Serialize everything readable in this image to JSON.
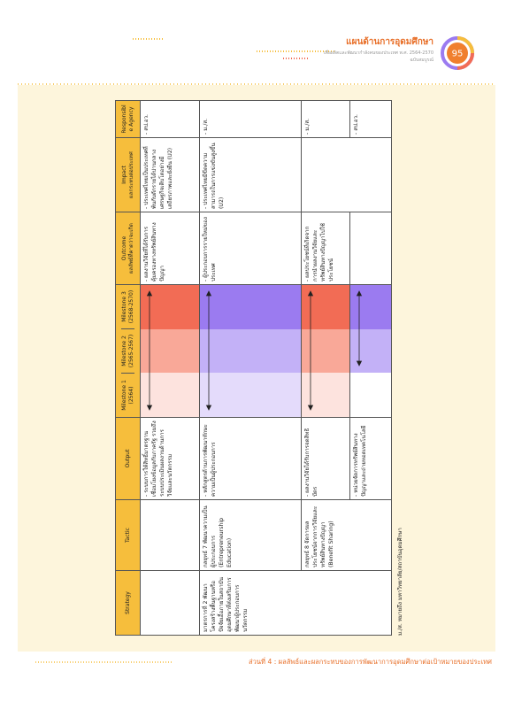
{
  "header": {
    "title": "แผนด้านการอุดมศึกษา",
    "subtitle": "เพื่อผลิตและพัฒนากำลังคนของประเทศ พ.ศ. 2564-2570",
    "edition": "ฉบับสมบูรณ์",
    "page_number": "95"
  },
  "table": {
    "headers": {
      "strategy": "Strategy",
      "tactic": "Tactic",
      "output": "Output",
      "milestone_1": {
        "title": "Milestone 1",
        "years": "(2564)"
      },
      "milestone_2": {
        "title": "Milestone 2",
        "years": "(2565-2567)"
      },
      "milestone_3": {
        "title": "Milestone 3",
        "years": "(2568-2570)"
      },
      "outcome": {
        "title": "Outcome",
        "subtitle": "ผลลัพธ์ที่คาดว่าจะเกิด"
      },
      "impact": {
        "title": "Impact",
        "subtitle": "ผลกระทบต่อประเทศ"
      },
      "agency": "Responsible Agency"
    },
    "rows": [
      {
        "output": "- ระบบการให้สิทธิ์มาตรฐานเชื่อมโยงข้อมูลกับภาครัฐ รวมถึงระบบประเมินผลงานด้านการวิจัยและนวัตกรรม",
        "outcome": "- ผลงานวิจัยที่ได้รับการคุ้มครองทางทรัพย์สินทางปัญญา",
        "impact": "- ประเทศไทยเป็นประเทศที่พ้นกับดักรายได้ปานกลาง เศรษฐกิจเติบโตอย่างมีเสถียรภาพและยั่งยืน (U2)",
        "agency": "- สป.อว."
      },
      {
        "strategy": "มาตรการที่ 2 พัฒนาโครงสร้างพื้นฐานหรือปัจจัยเอื้อภายในสถาบันอุดมศึกษาที่ส่งเสริมการพัฒนาผู้ประกอบการนวัตกรรม",
        "tactic": "กลยุทธ์ 7 พัฒนาความเป็นผู้ประกอบการ (Entrepreneurship Education)",
        "output": "- หลักสูตรด้านการพัฒนาทักษะความเป็นผู้ประกอบการ",
        "outcome": "- ผู้ประกอบการรายใหม่ของประเทศ",
        "impact": "- ประเทศไทยมีขีดความสามารถในการแข่งขันสูงขึ้น (U2)",
        "agency": "- ม./ส."
      },
      {
        "tactic": "กลยุทธ์ 8 จัดการผลประโยชน์จากการวิจัยและทรัพย์สินทางปัญญา (Benefit Sharing)",
        "output": "- ผลงานวิจัยได้รับการจดสิทธิบัตร",
        "outcome": "- ผลประโยชน์ที่เกิดจากการนำผลงานวิจัยและทรัพย์สินทางปัญญาไปใช้ประโยชน์",
        "agency": "- ม./ส."
      },
      {
        "output": "- หน่วยจัดการทรัพย์สินทางปัญญาและถ่ายทอดเทคโนโลยี",
        "agency": "- สป.อว."
      }
    ],
    "note": "ม./ส. หมายถึง มหาวิทยาลัย/สถาบันอุดมศึกษา"
  },
  "footer": "ส่วนที่ 4 : ผลลัพธ์และผลกระทบของการพัฒนาการอุดมศึกษาต่อเป้าหมายของประเทศ"
}
